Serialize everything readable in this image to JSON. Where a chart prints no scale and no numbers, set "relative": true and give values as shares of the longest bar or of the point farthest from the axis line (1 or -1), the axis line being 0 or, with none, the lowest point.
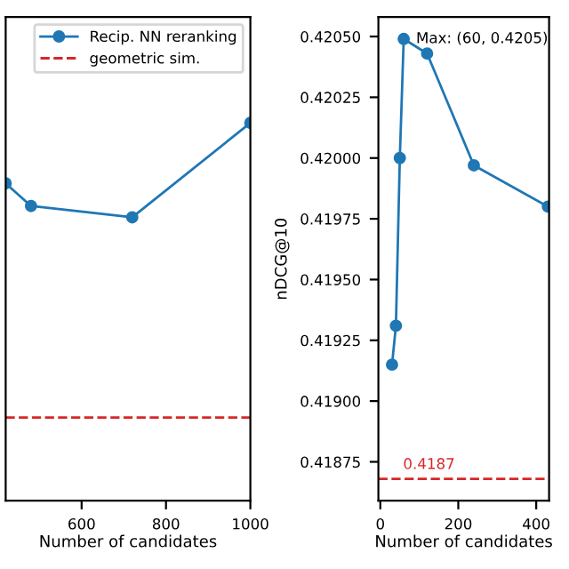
{
  "chart_data": [
    {
      "type": "line",
      "relative": true,
      "xlabel": "Number of candidates",
      "x": [
        420,
        480,
        720,
        1000
      ],
      "xlim": [
        420,
        1000
      ],
      "xticks": [
        600,
        800,
        1000
      ],
      "marker": "circle",
      "line_style": "solid",
      "legend": "top right",
      "grid": false,
      "tick_labels": "x",
      "series": [
        {
          "name": "Recip. NN reranking",
          "color": "#1f77b4",
          "values": [
            0.84,
            0.78,
            0.75,
            1.0
          ]
        }
      ],
      "ref_lines": [
        {
          "axis": "y",
          "value": 0.22,
          "label": "geometric sim.",
          "color": "#d62728",
          "line_style": "dashed"
        }
      ]
    },
    {
      "type": "line",
      "xlabel": "Number of candidates",
      "ylabel": "nDCG@10",
      "x": [
        30,
        40,
        50,
        60,
        120,
        240,
        430
      ],
      "xlim": [
        -5,
        433
      ],
      "xticks": [
        0,
        200,
        400
      ],
      "ylim": [
        0.41859,
        0.42058
      ],
      "yticks": [
        {
          "value": 0.41875,
          "label": "0.41875"
        },
        {
          "value": 0.419,
          "label": "0.41900"
        },
        {
          "value": 0.41925,
          "label": "0.41925"
        },
        {
          "value": 0.4195,
          "label": "0.41950"
        },
        {
          "value": 0.41975,
          "label": "0.41975"
        },
        {
          "value": 0.42,
          "label": "0.42000"
        },
        {
          "value": 0.42025,
          "label": "0.42025"
        },
        {
          "value": 0.4205,
          "label": "0.42050"
        }
      ],
      "marker": "circle",
      "line_style": "solid",
      "grid": false,
      "series": [
        {
          "color": "#1f77b4",
          "values": [
            0.41915,
            0.41931,
            0.42,
            0.42049,
            0.42043,
            0.41997,
            0.4198
          ]
        }
      ],
      "ref_lines": [
        {
          "axis": "y",
          "value": 0.41868,
          "label": "0.4187",
          "color": "#d62728",
          "line_style": "dashed"
        }
      ],
      "annotations": [
        {
          "text": "Max: (60, 0.4205)",
          "x": 60,
          "y": 0.42049
        }
      ]
    }
  ]
}
